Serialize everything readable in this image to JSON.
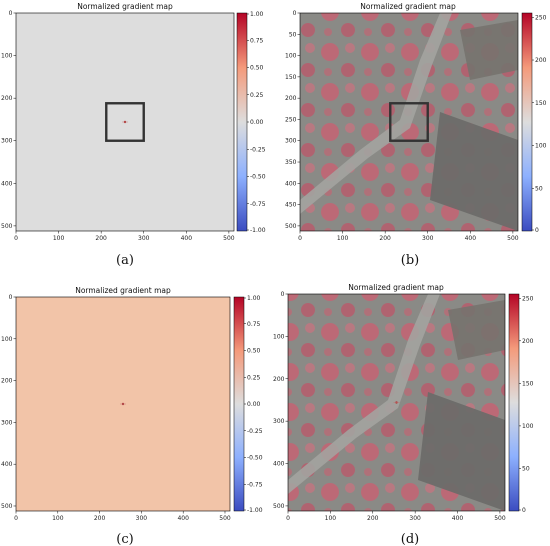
{
  "chart_data": [
    {
      "id": "a",
      "type": "heatmap",
      "title": "Normalized gradient map",
      "caption": "(a)",
      "xlim": [
        0,
        512
      ],
      "ylim": [
        512,
        0
      ],
      "xticks": [
        0,
        100,
        200,
        300,
        400,
        500
      ],
      "yticks": [
        0,
        100,
        200,
        300,
        400,
        500
      ],
      "colorbar": {
        "range": [
          -1.0,
          1.0
        ],
        "colormap": "coolwarm",
        "ticks": [
          "1.00",
          "0.75",
          "0.50",
          "0.25",
          "0.00",
          "-0.25",
          "-0.50",
          "-0.75",
          "-1.00"
        ]
      },
      "background_value": 0.0,
      "highlight_box": {
        "x": [
          212,
          300
        ],
        "y": [
          212,
          300
        ]
      },
      "point": {
        "x": 256,
        "y": 256
      }
    },
    {
      "id": "b",
      "type": "heatmap",
      "title": "Normalized gradient map",
      "caption": "(b)",
      "xlim": [
        0,
        512
      ],
      "ylim": [
        512,
        0
      ],
      "xticks": [
        0,
        100,
        200,
        300,
        400,
        500
      ],
      "yticks": [
        0,
        50,
        100,
        150,
        200,
        250,
        300,
        350,
        400,
        450,
        500
      ],
      "colorbar": {
        "range": [
          0,
          255
        ],
        "colormap": "coolwarm",
        "ticks": [
          "250",
          "200",
          "150",
          "100",
          "50",
          "0"
        ]
      },
      "highlight_box": {
        "x": [
          212,
          300
        ],
        "y": [
          212,
          300
        ]
      }
    },
    {
      "id": "c",
      "type": "heatmap",
      "title": "Normalized gradient map",
      "caption": "(c)",
      "xlim": [
        0,
        512
      ],
      "ylim": [
        512,
        0
      ],
      "xticks": [
        0,
        100,
        200,
        300,
        400,
        500
      ],
      "yticks": [
        0,
        100,
        200,
        300,
        400,
        500
      ],
      "colorbar": {
        "range": [
          -1.0,
          1.0
        ],
        "colormap": "coolwarm",
        "ticks": [
          "1.00",
          "0.75",
          "0.50",
          "0.25",
          "0.00",
          "-0.25",
          "-0.50",
          "-0.75",
          "-1.00"
        ]
      },
      "background_value": 0.3,
      "point": {
        "x": 256,
        "y": 256
      }
    },
    {
      "id": "d",
      "type": "heatmap",
      "title": "Normalized gradient map",
      "caption": "(d)",
      "xlim": [
        0,
        512
      ],
      "ylim": [
        512,
        0
      ],
      "xticks": [
        0,
        100,
        200,
        300,
        400,
        500
      ],
      "yticks": [
        0,
        100,
        200,
        300,
        400,
        500
      ],
      "colorbar": {
        "range": [
          0,
          255
        ],
        "colormap": "coolwarm",
        "ticks": [
          "250",
          "200",
          "150",
          "100",
          "50",
          "0"
        ]
      },
      "point": {
        "x": 256,
        "y": 256
      }
    }
  ],
  "colors": {
    "zero": "#dddddd",
    "positive_light": "#f2c4a8",
    "highlight_box": "#333333",
    "aerial_base": "#8a8a86"
  },
  "icons": [
    "aerial-photo-image",
    "aerial-photo-image-d"
  ]
}
